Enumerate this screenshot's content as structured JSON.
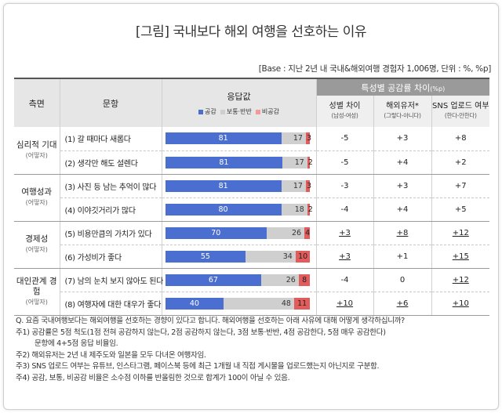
{
  "title": "[그림] 국내보다 해외 여행을 선호하는 이유",
  "base": "[Base : 지난 2년 내 국내&해외여행 경험자 1,006명, 단위 : %, %p]",
  "header": {
    "category": "측면",
    "item": "문항",
    "response": "응답값",
    "gap_group": "특성별 공감률 차이",
    "gap_unit": "(%p)",
    "legend": [
      "공감",
      "보통·반반",
      "비공감"
    ],
    "gap_cols": [
      {
        "label": "성별 차이",
        "sub": "(남성-여성)"
      },
      {
        "label": "해외유저*",
        "sub": "(그렇다-아니다)"
      },
      {
        "label": "SNS 업로드 여부",
        "sub": "(한다-안한다)"
      }
    ]
  },
  "colors": {
    "agree": "#4a6fd1",
    "neutral": "#cfcfcf",
    "disagree": "#f29a9a"
  },
  "groups": [
    {
      "name": "심리적 기대",
      "sub": "(어떻자)",
      "rows": [
        0,
        1
      ]
    },
    {
      "name": "여행성과",
      "sub": "(어떻자)",
      "rows": [
        2,
        3
      ]
    },
    {
      "name": "경제성",
      "sub": "(어떻자)",
      "rows": [
        4,
        5
      ]
    },
    {
      "name": "대인관계 경험",
      "sub": "(어떻자)",
      "rows": [
        6,
        7
      ]
    }
  ],
  "chart_data": {
    "type": "bar",
    "stacked": true,
    "categories": [
      "(1) 갈 때마다 새롭다",
      "(2) 생각만 해도 설렌다",
      "(3) 사진 등 남는 추억이 많다",
      "(4) 이야깃거리가 많다",
      "(5) 비용만큼의 가치가 있다",
      "(6) 가성비가 좋다",
      "(7) 남의 눈치 보지 않아도 된다",
      "(8) 여행자에 대한 대우가 좋다"
    ],
    "series": [
      {
        "name": "공감",
        "values": [
          81,
          81,
          81,
          80,
          70,
          55,
          67,
          40
        ]
      },
      {
        "name": "보통·반반",
        "values": [
          17,
          17,
          17,
          18,
          26,
          34,
          26,
          48
        ]
      },
      {
        "name": "비공감",
        "values": [
          3,
          2,
          3,
          2,
          4,
          10,
          8,
          11
        ]
      }
    ],
    "gaps": {
      "gender": [
        "-5",
        "-5",
        "-3",
        "-4",
        "+3",
        "+3",
        "-4",
        "+10"
      ],
      "overseas": [
        "+3",
        "+4",
        "+3",
        "+4",
        "+8",
        "+1",
        "0",
        "+6"
      ],
      "sns": [
        "+8",
        "+2",
        "+7",
        "+5",
        "+12",
        "+15",
        "+12",
        "+10"
      ]
    },
    "gaps_underlined": {
      "gender": [
        false,
        false,
        false,
        false,
        true,
        true,
        false,
        true
      ],
      "overseas": [
        false,
        false,
        false,
        false,
        true,
        false,
        false,
        true
      ],
      "sns": [
        false,
        false,
        false,
        false,
        true,
        true,
        true,
        true
      ]
    }
  },
  "notes": [
    "Q. 요즘 국내여행보다는 해외여행을 선호하는 경향이 있다고 합니다. 해외여행을 선호하는 아래 사유에 대해 어떻게 생각하십니까?",
    "주1) 공감률은 5점 척도(1점 전혀 공감하지 않는다, 2점 공감하지 않는다, 3점 보통·반반, 4점 공감한다, 5점 매우 공감한다)",
    "문항에 4+5점 응답 비율임.",
    "주2) 해외유저는 2년 내 제주도와 일본을 모두 다녀온 여행자임.",
    "주3) SNS 업로드 여부는 유튜브, 인스타그램, 페이스북 등에 최근 1개월 내 직접 게시물을 업로드했는지 아닌지로 구분함.",
    "주4) 공감, 보통, 비공감 비율은 소수점 이하를 반올림한 것으로 합계가 100이 아닐 수 있음."
  ]
}
